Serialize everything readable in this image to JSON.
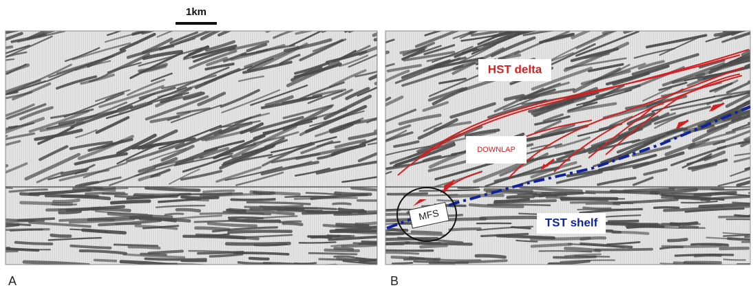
{
  "scale_bar": {
    "label": "1km"
  },
  "panels": [
    {
      "label": "A"
    },
    {
      "label": "B",
      "annotations": {
        "hst": "HST delta",
        "downlap": "DOWNLAP",
        "mfs": "MFS",
        "tst": "TST shelf"
      }
    }
  ]
}
